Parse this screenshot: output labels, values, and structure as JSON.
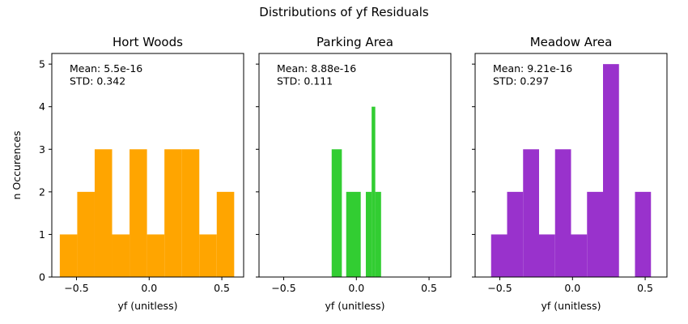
{
  "chart_data": {
    "title": "Distributions of yf Residuals",
    "shared_ylabel": "n Occurences",
    "panels": [
      {
        "type": "bar",
        "subtype": "histogram",
        "title": "Hort Woods",
        "xlabel": "yf (unitless)",
        "color": "#ffa500",
        "xlim": [
          -0.67,
          0.65
        ],
        "ylim": [
          0,
          5.25
        ],
        "xticks": [
          "−0.5",
          "0.0",
          "0.5"
        ],
        "xtick_values": [
          -0.5,
          0.0,
          0.5
        ],
        "yticks": [
          "0",
          "1",
          "2",
          "3",
          "4",
          "5"
        ],
        "ytick_values": [
          0,
          1,
          2,
          3,
          4,
          5
        ],
        "annotation": [
          "Mean: 5.5e-16",
          "STD: 0.342"
        ],
        "bins": [
          {
            "x0": -0.615,
            "x1": -0.495,
            "count": 1
          },
          {
            "x0": -0.495,
            "x1": -0.375,
            "count": 2
          },
          {
            "x0": -0.375,
            "x1": -0.255,
            "count": 3
          },
          {
            "x0": -0.255,
            "x1": -0.135,
            "count": 1
          },
          {
            "x0": -0.135,
            "x1": -0.015,
            "count": 3
          },
          {
            "x0": -0.015,
            "x1": 0.105,
            "count": 1
          },
          {
            "x0": 0.105,
            "x1": 0.225,
            "count": 3
          },
          {
            "x0": 0.225,
            "x1": 0.345,
            "count": 3
          },
          {
            "x0": 0.345,
            "x1": 0.465,
            "count": 1
          },
          {
            "x0": 0.465,
            "x1": 0.585,
            "count": 2
          }
        ]
      },
      {
        "type": "bar",
        "subtype": "histogram",
        "title": "Parking Area",
        "xlabel": "yf (unitless)",
        "color": "#32cd32",
        "xlim": [
          -0.67,
          0.65
        ],
        "ylim": [
          0,
          5.25
        ],
        "xticks": [
          "−0.5",
          "0.0",
          "0.5"
        ],
        "xtick_values": [
          -0.5,
          0.0,
          0.5
        ],
        "yticks": [],
        "ytick_values": [
          0,
          1,
          2,
          3,
          4,
          5
        ],
        "annotation": [
          "Mean: 8.88e-16",
          "STD: 0.111"
        ],
        "bins": [
          {
            "x0": -0.17,
            "x1": -0.1,
            "count": 3
          },
          {
            "x0": -0.07,
            "x1": 0.03,
            "count": 2
          },
          {
            "x0": 0.065,
            "x1": 0.105,
            "count": 2
          },
          {
            "x0": 0.105,
            "x1": 0.13,
            "count": 4
          },
          {
            "x0": 0.13,
            "x1": 0.17,
            "count": 2
          }
        ]
      },
      {
        "type": "bar",
        "subtype": "histogram",
        "title": "Meadow Area",
        "xlabel": "yf (unitless)",
        "color": "#9932cc",
        "xlim": [
          -0.67,
          0.65
        ],
        "ylim": [
          0,
          5.25
        ],
        "xticks": [
          "−0.5",
          "0.0",
          "0.5"
        ],
        "xtick_values": [
          -0.5,
          0.0,
          0.5
        ],
        "yticks": [],
        "ytick_values": [
          0,
          1,
          2,
          3,
          4,
          5
        ],
        "annotation": [
          "Mean: 9.21e-16",
          "STD: 0.297"
        ],
        "bins": [
          {
            "x0": -0.56,
            "x1": -0.45,
            "count": 1
          },
          {
            "x0": -0.45,
            "x1": -0.34,
            "count": 2
          },
          {
            "x0": -0.34,
            "x1": -0.23,
            "count": 3
          },
          {
            "x0": -0.23,
            "x1": -0.12,
            "count": 1
          },
          {
            "x0": -0.12,
            "x1": -0.01,
            "count": 3
          },
          {
            "x0": -0.01,
            "x1": 0.1,
            "count": 1
          },
          {
            "x0": 0.1,
            "x1": 0.21,
            "count": 2
          },
          {
            "x0": 0.21,
            "x1": 0.32,
            "count": 5
          },
          {
            "x0": 0.32,
            "x1": 0.43,
            "count": 0
          },
          {
            "x0": 0.43,
            "x1": 0.54,
            "count": 2
          }
        ]
      }
    ]
  }
}
